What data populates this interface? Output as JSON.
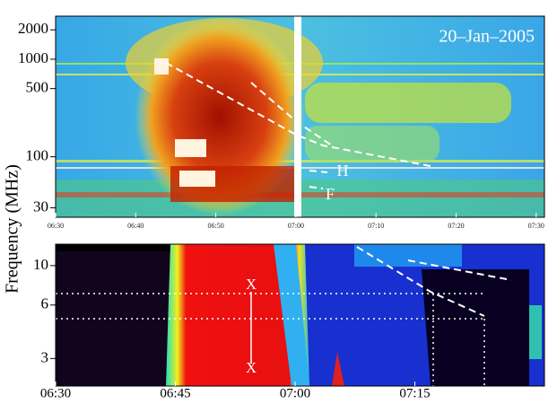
{
  "chart_data": [
    {
      "type": "heatmap",
      "annotations": [
        "20–Jan–2005",
        "H",
        "F"
      ],
      "ylabel": "Frequency (MHz)",
      "yscale": "log",
      "ylim": [
        24,
        2760
      ],
      "yticks": [
        30,
        100,
        500,
        1000,
        2000
      ],
      "categories": [
        "06:30",
        "06:40",
        "06:50",
        "07:00",
        "07:10",
        "07:20",
        "07:30"
      ]
    },
    {
      "type": "heatmap",
      "annotations": [
        "X",
        "X"
      ],
      "yscale": "log",
      "ylim": [
        2.1,
        13.2
      ],
      "yticks": [
        3,
        6,
        10
      ],
      "categories": [
        "06:30",
        "06:45",
        "07:00",
        "07:15"
      ]
    }
  ]
}
